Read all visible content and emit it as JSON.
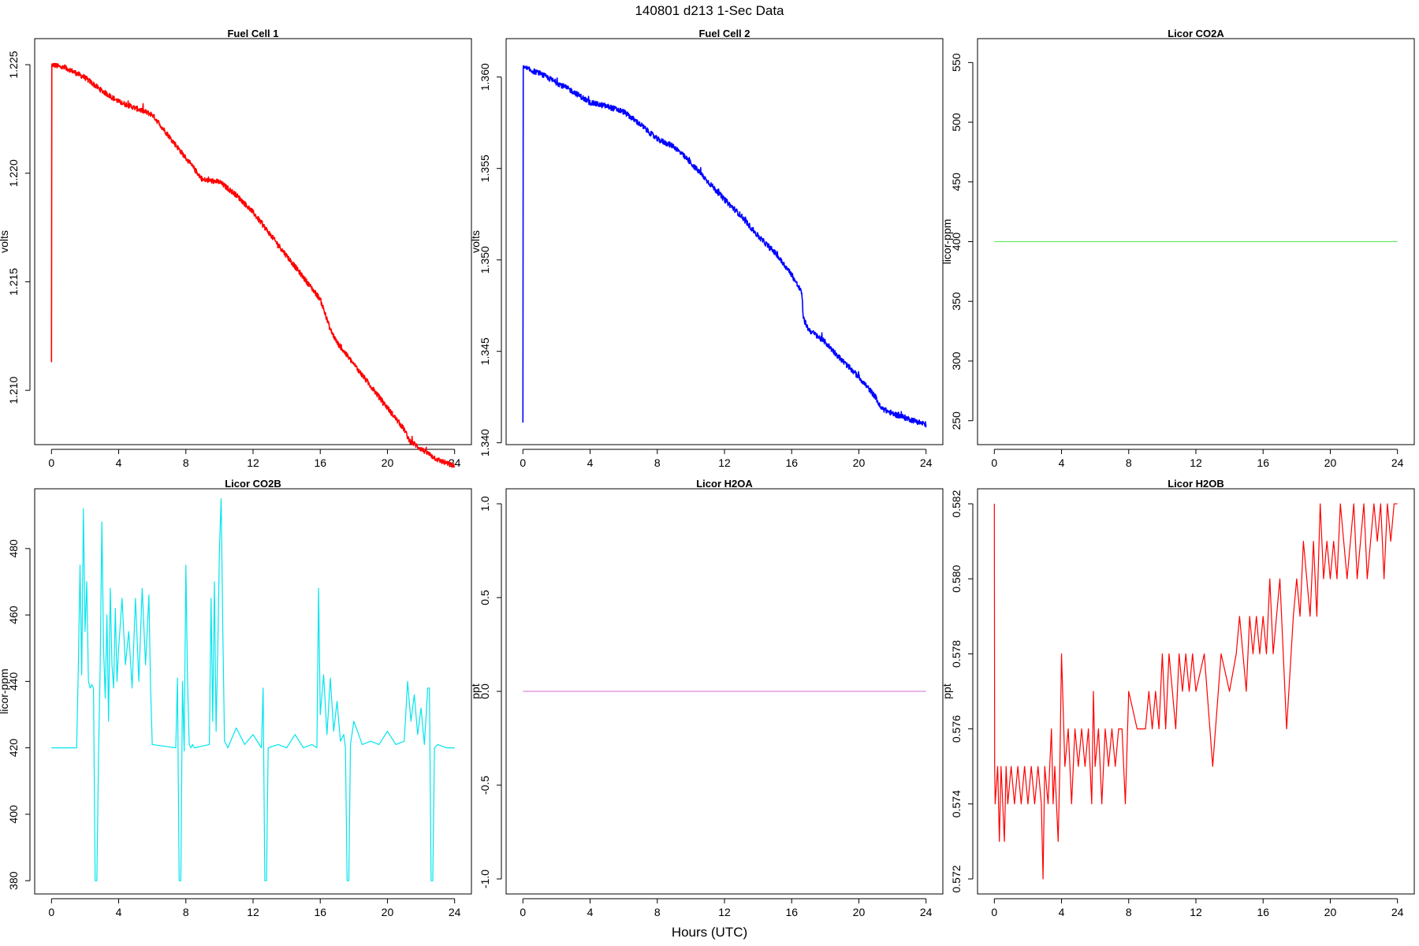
{
  "figure": {
    "title": "140801   d213   1-Sec Data",
    "xlabel": "Hours (UTC)"
  },
  "chart_data": [
    {
      "type": "line",
      "title": "Fuel Cell 1",
      "ylabel": "volts",
      "color": "#ff0000",
      "xlim": [
        -1,
        25
      ],
      "ylim": [
        1.2075,
        1.2262
      ],
      "xticks": [
        0,
        4,
        8,
        12,
        16,
        20,
        24
      ],
      "xtick_labels": [
        "0",
        "4",
        "8",
        "12",
        "16",
        "20",
        "24"
      ],
      "yticks": [
        1.21,
        1.215,
        1.22,
        1.225
      ],
      "ytick_labels": [
        "1.210",
        "1.215",
        "1.220",
        "1.225"
      ],
      "noise": 0.00012,
      "x": [
        0,
        0.02,
        0.05,
        1,
        2,
        3,
        4,
        5,
        6,
        7,
        8,
        9,
        10,
        11,
        12,
        13,
        14,
        15,
        16,
        16.6,
        17,
        18,
        19,
        20,
        21,
        21.3,
        22,
        23,
        24
      ],
      "y": [
        1.2113,
        1.225,
        1.225,
        1.2248,
        1.2244,
        1.2238,
        1.2233,
        1.223,
        1.2227,
        1.2217,
        1.2207,
        1.2197,
        1.2196,
        1.219,
        1.2182,
        1.2172,
        1.2162,
        1.2152,
        1.2142,
        1.2128,
        1.2122,
        1.2112,
        1.2102,
        1.2092,
        1.2082,
        1.2077,
        1.2073,
        1.2068,
        1.2065
      ]
    },
    {
      "type": "line",
      "title": "Fuel Cell 2",
      "ylabel": "volts",
      "color": "#0000ff",
      "xlim": [
        -1,
        25
      ],
      "ylim": [
        1.3399,
        1.3621
      ],
      "xticks": [
        0,
        4,
        8,
        12,
        16,
        20,
        24
      ],
      "xtick_labels": [
        "0",
        "4",
        "8",
        "12",
        "16",
        "20",
        "24"
      ],
      "yticks": [
        1.34,
        1.345,
        1.35,
        1.355,
        1.36
      ],
      "ytick_labels": [
        "1.340",
        "1.345",
        "1.350",
        "1.355",
        "1.360"
      ],
      "noise": 0.00015,
      "x": [
        0,
        0.02,
        0.05,
        1,
        2,
        3,
        4,
        5,
        6,
        7,
        8,
        9,
        10,
        11,
        12,
        13,
        14,
        15,
        16,
        16.6,
        16.7,
        17,
        18,
        19,
        20,
        21,
        21.3,
        22,
        23,
        24
      ],
      "y": [
        1.3411,
        1.3605,
        1.3605,
        1.3602,
        1.3597,
        1.3592,
        1.3586,
        1.3584,
        1.3581,
        1.3574,
        1.3566,
        1.3562,
        1.3553,
        1.3543,
        1.3533,
        1.3524,
        1.3513,
        1.3504,
        1.3492,
        1.3482,
        1.3468,
        1.3462,
        1.3455,
        1.3445,
        1.3436,
        1.3425,
        1.3419,
        1.3416,
        1.3413,
        1.341
      ]
    },
    {
      "type": "line",
      "title": "Licor CO2A",
      "ylabel": "licor-ppm",
      "color": "#66ee66",
      "xlim": [
        -1,
        25
      ],
      "ylim": [
        230,
        570
      ],
      "xticks": [
        0,
        4,
        8,
        12,
        16,
        20,
        24
      ],
      "xtick_labels": [
        "0",
        "4",
        "8",
        "12",
        "16",
        "20",
        "24"
      ],
      "yticks": [
        250,
        300,
        350,
        400,
        450,
        500,
        550
      ],
      "ytick_labels": [
        "250",
        "300",
        "350",
        "400",
        "450",
        "500",
        "550"
      ],
      "noise": 0,
      "x": [
        0,
        24
      ],
      "y": [
        400,
        400
      ]
    },
    {
      "type": "line",
      "title": "Licor CO2B",
      "ylabel": "licor-ppm",
      "color": "#00e5ee",
      "xlim": [
        -1,
        25
      ],
      "ylim": [
        376,
        498
      ],
      "xticks": [
        0,
        4,
        8,
        12,
        16,
        20,
        24
      ],
      "xtick_labels": [
        "0",
        "4",
        "8",
        "12",
        "16",
        "20",
        "24"
      ],
      "yticks": [
        380,
        400,
        420,
        440,
        460,
        480
      ],
      "ytick_labels": [
        "380",
        "400",
        "420",
        "440",
        "460",
        "480"
      ],
      "noise": 0,
      "x": [
        0,
        1.5,
        1.6,
        1.7,
        1.8,
        1.9,
        2.0,
        2.1,
        2.2,
        2.3,
        2.4,
        2.5,
        2.6,
        2.7,
        2.8,
        2.9,
        3.0,
        3.1,
        3.2,
        3.3,
        3.4,
        3.5,
        3.6,
        3.7,
        3.8,
        3.9,
        4.0,
        4.2,
        4.4,
        4.6,
        4.8,
        5.0,
        5.2,
        5.4,
        5.6,
        5.8,
        5.9,
        6.0,
        7.4,
        7.5,
        7.6,
        7.7,
        7.8,
        7.9,
        8.0,
        8.1,
        8.2,
        8.3,
        8.4,
        8.5,
        9.4,
        9.5,
        9.6,
        9.7,
        9.8,
        9.9,
        10.0,
        10.1,
        10.2,
        10.3,
        10.4,
        10.5,
        11.0,
        11.5,
        12.0,
        12.5,
        12.6,
        12.7,
        12.8,
        12.9,
        13.5,
        14.0,
        14.5,
        15.0,
        15.5,
        15.8,
        15.9,
        16.0,
        16.2,
        16.4,
        16.6,
        16.8,
        17.0,
        17.2,
        17.4,
        17.5,
        17.6,
        17.7,
        17.8,
        18.0,
        18.5,
        19.0,
        19.5,
        20.0,
        20.5,
        21.0,
        21.2,
        21.4,
        21.6,
        21.8,
        22.0,
        22.2,
        22.4,
        22.5,
        22.6,
        22.7,
        22.8,
        23.0,
        23.5,
        24.0
      ],
      "y": [
        420,
        420,
        445,
        475,
        442,
        492,
        455,
        470,
        440,
        438,
        439,
        438,
        380,
        380,
        417,
        445,
        488,
        450,
        435,
        460,
        428,
        468,
        445,
        438,
        462,
        440,
        450,
        465,
        445,
        455,
        438,
        465,
        440,
        468,
        445,
        466,
        438,
        421,
        420,
        441,
        380,
        380,
        440,
        419,
        475,
        440,
        421,
        420,
        421,
        420,
        421,
        465,
        428,
        470,
        425,
        450,
        480,
        495,
        455,
        422,
        421,
        420,
        426,
        421,
        424,
        420,
        438,
        380,
        380,
        420,
        421,
        420,
        424,
        420,
        421,
        420,
        468,
        430,
        442,
        424,
        441,
        425,
        434,
        422,
        424,
        420,
        380,
        380,
        421,
        428,
        421,
        422,
        421,
        425,
        421,
        422,
        440,
        428,
        436,
        424,
        432,
        421,
        438,
        438,
        380,
        380,
        420,
        421,
        420,
        420
      ]
    },
    {
      "type": "line",
      "title": "Licor H2OA",
      "ylabel": "ppt",
      "color": "#dd88dd",
      "xlim": [
        -1,
        25
      ],
      "ylim": [
        -1.08,
        1.08
      ],
      "xticks": [
        0,
        4,
        8,
        12,
        16,
        20,
        24
      ],
      "xtick_labels": [
        "0",
        "4",
        "8",
        "12",
        "16",
        "20",
        "24"
      ],
      "yticks": [
        -1.0,
        -0.5,
        0.0,
        0.5,
        1.0
      ],
      "ytick_labels": [
        "-1.0",
        "-0.5",
        "0.0",
        "0.5",
        "1.0"
      ],
      "noise": 0,
      "x": [
        0,
        24
      ],
      "y": [
        0,
        0
      ]
    },
    {
      "type": "line",
      "title": "Licor H2OB",
      "ylabel": "ppt",
      "color": "#ff0000",
      "xlim": [
        -1,
        25
      ],
      "ylim": [
        0.5716,
        0.5824
      ],
      "xticks": [
        0,
        4,
        8,
        12,
        16,
        20,
        24
      ],
      "xtick_labels": [
        "0",
        "4",
        "8",
        "12",
        "16",
        "20",
        "24"
      ],
      "yticks": [
        0.572,
        0.574,
        0.576,
        0.578,
        0.58,
        0.582
      ],
      "ytick_labels": [
        "0.572",
        "0.574",
        "0.576",
        "0.578",
        "0.580",
        "0.582"
      ],
      "noise": 0,
      "x": [
        0,
        0.02,
        0.05,
        0.2,
        0.3,
        0.4,
        0.5,
        0.6,
        0.7,
        0.8,
        1.0,
        1.2,
        1.4,
        1.6,
        1.8,
        2.0,
        2.2,
        2.4,
        2.6,
        2.8,
        2.9,
        3.0,
        3.2,
        3.4,
        3.5,
        3.6,
        3.8,
        3.9,
        4.0,
        4.2,
        4.4,
        4.6,
        4.8,
        5.0,
        5.2,
        5.4,
        5.6,
        5.8,
        5.9,
        6.0,
        6.2,
        6.4,
        6.6,
        6.8,
        7.0,
        7.2,
        7.4,
        7.6,
        7.8,
        8.0,
        8.5,
        9.0,
        9.2,
        9.4,
        9.6,
        9.8,
        10.0,
        10.2,
        10.4,
        10.6,
        10.8,
        11.0,
        11.2,
        11.4,
        11.6,
        11.8,
        12.0,
        12.5,
        13.0,
        13.5,
        14.0,
        14.4,
        14.6,
        14.8,
        15.0,
        15.2,
        15.4,
        15.6,
        15.8,
        16.0,
        16.2,
        16.4,
        16.6,
        16.8,
        17.0,
        17.4,
        17.8,
        18.0,
        18.2,
        18.4,
        18.6,
        18.8,
        19.0,
        19.2,
        19.4,
        19.6,
        19.8,
        20.0,
        20.2,
        20.4,
        20.6,
        20.8,
        21.0,
        21.2,
        21.4,
        21.6,
        21.8,
        22.0,
        22.2,
        22.4,
        22.6,
        22.8,
        23.0,
        23.2,
        23.4,
        23.6,
        23.8,
        24.0
      ],
      "y": [
        0.582,
        0.575,
        0.574,
        0.575,
        0.573,
        0.575,
        0.574,
        0.573,
        0.575,
        0.574,
        0.575,
        0.574,
        0.575,
        0.574,
        0.575,
        0.574,
        0.575,
        0.574,
        0.575,
        0.574,
        0.572,
        0.575,
        0.574,
        0.576,
        0.574,
        0.575,
        0.573,
        0.575,
        0.578,
        0.575,
        0.576,
        0.574,
        0.576,
        0.575,
        0.576,
        0.575,
        0.576,
        0.574,
        0.577,
        0.575,
        0.576,
        0.574,
        0.576,
        0.575,
        0.576,
        0.575,
        0.576,
        0.576,
        0.574,
        0.577,
        0.576,
        0.576,
        0.577,
        0.576,
        0.577,
        0.576,
        0.578,
        0.576,
        0.578,
        0.577,
        0.576,
        0.578,
        0.577,
        0.578,
        0.577,
        0.578,
        0.577,
        0.578,
        0.575,
        0.578,
        0.577,
        0.578,
        0.579,
        0.578,
        0.577,
        0.579,
        0.578,
        0.579,
        0.578,
        0.579,
        0.578,
        0.58,
        0.578,
        0.579,
        0.58,
        0.576,
        0.579,
        0.58,
        0.579,
        0.581,
        0.58,
        0.579,
        0.581,
        0.579,
        0.582,
        0.58,
        0.581,
        0.58,
        0.581,
        0.58,
        0.582,
        0.581,
        0.58,
        0.581,
        0.582,
        0.58,
        0.581,
        0.582,
        0.58,
        0.581,
        0.582,
        0.581,
        0.582,
        0.58,
        0.582,
        0.581,
        0.582,
        0.582
      ]
    }
  ]
}
